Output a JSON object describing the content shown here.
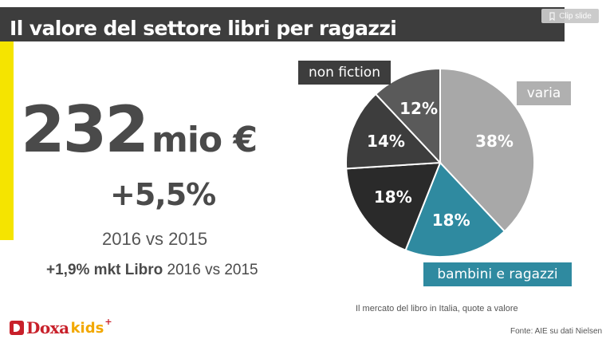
{
  "slide": {
    "title": "Il valore del settore libri per ragazzi",
    "clip_button_label": "Clip slide",
    "big_number": "232",
    "big_unit": "mio €",
    "growth": "+5,5%",
    "compare": "2016 vs 2015",
    "mkt_bold": "+1,9% mkt Libro",
    "mkt_rest": " 2016 vs 2015",
    "caption": "Il mercato del libro in Italia, quote a valore",
    "source": "Fonte: AIE su dati Nielsen"
  },
  "logo": {
    "doxa": "Doxa",
    "kids": "kids",
    "plus": "+"
  },
  "callouts": {
    "non_fiction": "non fiction",
    "varia": "varia",
    "bambini": "bambini e ragazzi"
  },
  "chart_data": {
    "type": "pie",
    "title": "",
    "slices": [
      {
        "name": "varia",
        "value": 38,
        "label": "38%",
        "color": "#a8a8a8"
      },
      {
        "name": "bambini e ragazzi",
        "value": 18,
        "label": "18%",
        "color": "#2f8aa0"
      },
      {
        "name": "",
        "value": 18,
        "label": "18%",
        "color": "#2a2a2a"
      },
      {
        "name": "",
        "value": 14,
        "label": "14%",
        "color": "#3d3d3d"
      },
      {
        "name": "non fiction",
        "value": 12,
        "label": "12%",
        "color": "#5a5a5a"
      }
    ]
  }
}
